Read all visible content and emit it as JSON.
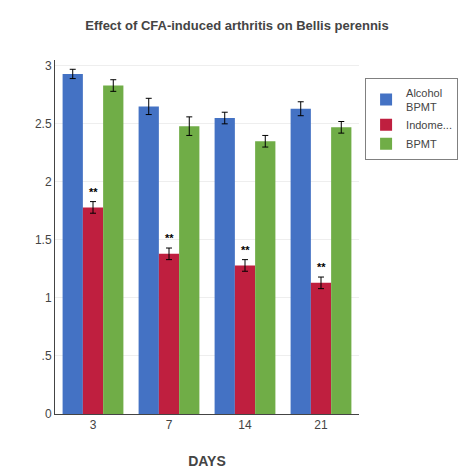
{
  "chart_data": {
    "type": "bar",
    "title": "Effect of CFA-induced arthritis on Bellis perennis",
    "xlabel": "DAYS",
    "categories": [
      "3",
      "7",
      "14",
      "21"
    ],
    "series": [
      {
        "name": "Alcohol\nBPMT",
        "color": "#4472C4",
        "values": [
          2.93,
          2.65,
          2.55,
          2.63
        ],
        "errors": [
          0.04,
          0.07,
          0.05,
          0.06
        ]
      },
      {
        "name": "Indome...",
        "color": "#BF1F3F",
        "values": [
          1.78,
          1.38,
          1.28,
          1.13
        ],
        "errors": [
          0.05,
          0.05,
          0.05,
          0.05
        ]
      },
      {
        "name": "BPMT",
        "color": "#70AD47",
        "values": [
          2.83,
          2.48,
          2.35,
          2.47
        ],
        "errors": [
          0.05,
          0.08,
          0.05,
          0.05
        ]
      }
    ],
    "annotations": [
      {
        "category": "3",
        "series": "Indome...",
        "text": "**"
      },
      {
        "category": "7",
        "series": "Indome...",
        "text": "**"
      },
      {
        "category": "14",
        "series": "Indome...",
        "text": "**"
      },
      {
        "category": "21",
        "series": "Indome...",
        "text": "**"
      }
    ],
    "ylim": [
      0,
      3.05
    ],
    "yticks": [
      0,
      {
        "value": 0.5,
        "label": ".5"
      },
      1,
      1.5,
      2,
      2.5,
      3
    ],
    "grid": true,
    "legend": "upper right"
  }
}
